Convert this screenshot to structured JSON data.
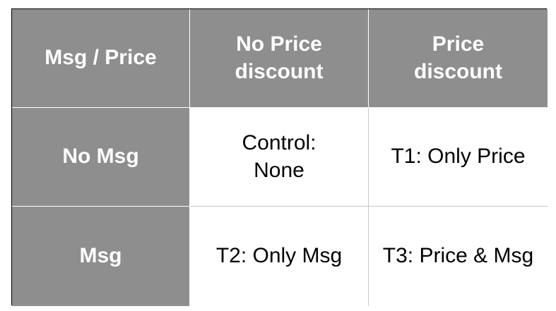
{
  "table": {
    "corner": "Msg / Price",
    "columns": [
      [
        "No Price",
        "discount"
      ],
      [
        "Price",
        "discount"
      ]
    ],
    "rows": [
      {
        "label": "No Msg",
        "cells": [
          [
            "Control:",
            "None"
          ],
          [
            "T1: Only Price"
          ]
        ]
      },
      {
        "label": "Msg",
        "cells": [
          [
            "T2: Only Msg"
          ],
          [
            "T3: Price & Msg"
          ]
        ]
      }
    ]
  },
  "colors": {
    "header_background": "#8e8e8e",
    "header_text": "#ffffff",
    "body_background": "#ffffff",
    "body_text": "#000000",
    "grid_line": "#c8c8c8",
    "outer_border": "#000000"
  }
}
